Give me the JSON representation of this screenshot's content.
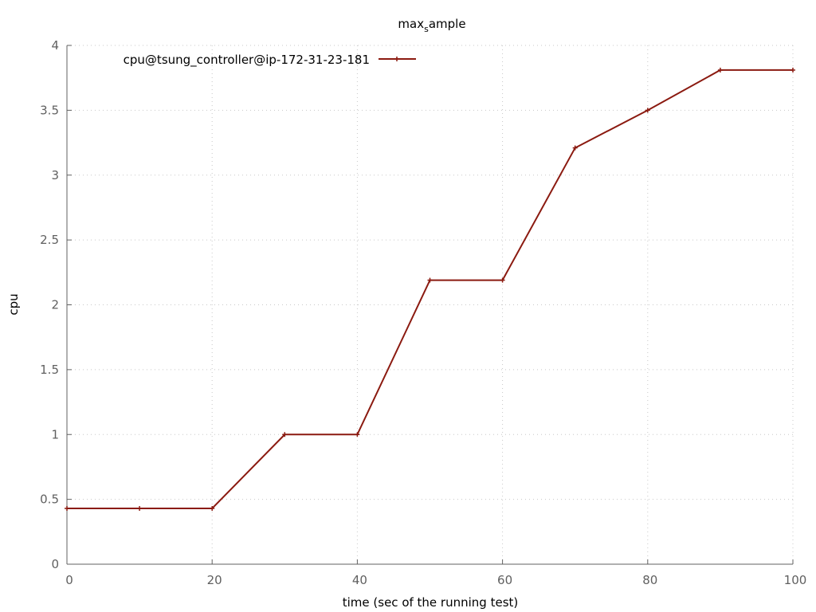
{
  "chart_data": {
    "type": "line",
    "title_main": "max",
    "title_sub": "s",
    "title_rest": "ample",
    "xlabel": "time (sec of the running test)",
    "ylabel": "cpu",
    "xlim": [
      0,
      100
    ],
    "ylim": [
      0,
      4
    ],
    "x_ticks": [
      "0",
      "20",
      "40",
      "60",
      "80",
      "100"
    ],
    "y_ticks": [
      "0",
      "0.5",
      "1",
      "1.5",
      "2",
      "2.5",
      "3",
      "3.5",
      "4"
    ],
    "grid": true,
    "legend_position": "top-left",
    "series": [
      {
        "name": "cpu@tsung_controller@ip-172-31-23-181",
        "color": "#8b1a10",
        "x": [
          0,
          10,
          20,
          30,
          40,
          50,
          60,
          70,
          80,
          90,
          100
        ],
        "y": [
          0.43,
          0.43,
          0.43,
          1.0,
          1.0,
          2.19,
          2.19,
          3.21,
          3.5,
          3.81,
          3.81
        ]
      }
    ]
  }
}
